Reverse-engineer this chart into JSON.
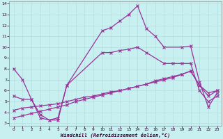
{
  "xlabel": "Windchill (Refroidissement éolien,°C)",
  "background_color": "#c8f0f0",
  "line_color": "#993399",
  "xlim": [
    -0.5,
    23.5
  ],
  "ylim": [
    2.8,
    14.2
  ],
  "xticks": [
    0,
    1,
    2,
    3,
    4,
    5,
    6,
    7,
    8,
    9,
    10,
    11,
    12,
    13,
    14,
    15,
    16,
    17,
    18,
    19,
    20,
    21,
    22,
    23
  ],
  "yticks": [
    3,
    4,
    5,
    6,
    7,
    8,
    9,
    10,
    11,
    12,
    13,
    14
  ],
  "series1_x": [
    0,
    1,
    2,
    3,
    4,
    5,
    6,
    10,
    11,
    12,
    13,
    14,
    15,
    16,
    17,
    19,
    20,
    21,
    22,
    23
  ],
  "series1_y": [
    8.0,
    7.0,
    5.2,
    3.5,
    3.3,
    3.3,
    6.5,
    11.5,
    11.8,
    12.4,
    13.0,
    13.8,
    11.7,
    11.0,
    10.0,
    10.0,
    10.1,
    6.8,
    4.5,
    5.8
  ],
  "series2_x": [
    0,
    1,
    2,
    3,
    4,
    5,
    6,
    10,
    11,
    12,
    13,
    14,
    15,
    17,
    18,
    19,
    20,
    21,
    22,
    23
  ],
  "series2_y": [
    5.5,
    5.2,
    5.2,
    3.8,
    3.3,
    3.5,
    6.5,
    9.5,
    9.5,
    9.7,
    9.8,
    10.0,
    9.5,
    8.5,
    8.5,
    8.5,
    8.5,
    6.0,
    5.0,
    5.5
  ],
  "series3_x": [
    0,
    1,
    2,
    3,
    4,
    5,
    6,
    7,
    8,
    9,
    10,
    11,
    12,
    13,
    14,
    15,
    16,
    17,
    18,
    19,
    20,
    21,
    22,
    23
  ],
  "series3_y": [
    3.5,
    3.7,
    3.9,
    4.1,
    4.3,
    4.5,
    4.7,
    5.0,
    5.2,
    5.4,
    5.6,
    5.8,
    6.0,
    6.2,
    6.4,
    6.6,
    6.9,
    7.1,
    7.3,
    7.5,
    7.8,
    6.5,
    5.5,
    6.0
  ],
  "series4_x": [
    0,
    1,
    2,
    3,
    4,
    5,
    6,
    7,
    8,
    9,
    10,
    11,
    12,
    13,
    14,
    15,
    16,
    17,
    18,
    19,
    20,
    21,
    22,
    23
  ],
  "series4_y": [
    4.2,
    4.4,
    4.5,
    4.6,
    4.7,
    4.8,
    5.0,
    5.2,
    5.4,
    5.5,
    5.7,
    5.9,
    6.0,
    6.2,
    6.4,
    6.6,
    6.8,
    7.0,
    7.2,
    7.5,
    7.8,
    6.5,
    5.8,
    6.0
  ]
}
